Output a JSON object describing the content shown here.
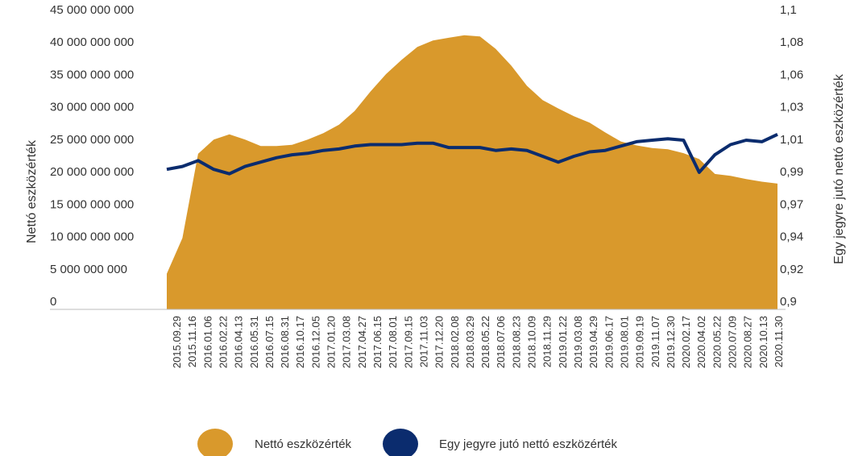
{
  "chart_data": {
    "type": "area+line",
    "title": "",
    "ylabel_left": "Nettó eszközérték",
    "ylabel_right": "Egy jegyre jutó nettó eszközérték",
    "grid": false,
    "legend_position": "bottom-center",
    "left_axis": {
      "ylim": [
        0,
        45000000000
      ],
      "tick_values": [
        0,
        5000000000,
        10000000000,
        15000000000,
        20000000000,
        25000000000,
        30000000000,
        35000000000,
        40000000000,
        45000000000
      ],
      "tick_labels": [
        "0",
        "5 000 000 000",
        "10 000 000 000",
        "15 000 000 000",
        "20 000 000 000",
        "25 000 000 000",
        "30 000 000 000",
        "35 000 000 000",
        "40 000 000 000",
        "45 000 000 000"
      ]
    },
    "right_axis": {
      "ylim": [
        0.9,
        1.1
      ],
      "tick_labels": [
        "0,9",
        "0,92",
        "0,94",
        "0,97",
        "0,99",
        "1,01",
        "1,03",
        "1,06",
        "1,08",
        "1,1"
      ]
    },
    "x_tick_labels": [
      "2015.09.29",
      "2015.11.16",
      "2016.01.06",
      "2016.02.22",
      "2016.04.13",
      "2016.05.31",
      "2016.07.15",
      "2016.08.31",
      "2016.10.17",
      "2016.12.05",
      "2017.01.20",
      "2017.03.08",
      "2017.04.27",
      "2017.06.15",
      "2017.08.01",
      "2017.09.15",
      "2017.11.03",
      "2017.12.20",
      "2018.02.08",
      "2018.03.29",
      "2018.05.22",
      "2018.07.06",
      "2018.08.23",
      "2018.10.09",
      "2018.11.29",
      "2019.01.22",
      "2019.03.08",
      "2019.04.29",
      "2019.06.17",
      "2019.08.01",
      "2019.09.19",
      "2019.11.07",
      "2019.12.30",
      "2020.02.17",
      "2020.04.02",
      "2020.05.22",
      "2020.07.09",
      "2020.08.27",
      "2020.10.13",
      "2020.11.30"
    ],
    "series": [
      {
        "name": "Nettó eszközérték",
        "kind": "area",
        "color": "#D9992C",
        "values": [
          5500000000,
          11000000000,
          24000000000,
          26200000000,
          27000000000,
          26200000000,
          25200000000,
          25200000000,
          25400000000,
          26200000000,
          27200000000,
          28500000000,
          30600000000,
          33600000000,
          36300000000,
          38500000000,
          40500000000,
          41500000000,
          41900000000,
          42300000000,
          42100000000,
          40200000000,
          37600000000,
          34500000000,
          32300000000,
          31000000000,
          29800000000,
          28800000000,
          27300000000,
          25900000000,
          25300000000,
          24900000000,
          24700000000,
          24100000000,
          23200000000,
          20900000000,
          20600000000,
          20100000000,
          19700000000,
          19400000000
        ]
      },
      {
        "name": "Egy jegyre jutó nettó eszközérték",
        "kind": "line",
        "color": "#0B2C6E",
        "values": [
          0.996,
          0.998,
          1.002,
          0.996,
          0.993,
          0.998,
          1.001,
          1.004,
          1.006,
          1.007,
          1.009,
          1.01,
          1.012,
          1.013,
          1.013,
          1.013,
          1.014,
          1.014,
          1.011,
          1.011,
          1.011,
          1.009,
          1.01,
          1.009,
          1.005,
          1.001,
          1.005,
          1.008,
          1.009,
          1.012,
          1.015,
          1.016,
          1.017,
          1.016,
          0.994,
          1.006,
          1.013,
          1.016,
          1.015,
          1.02
        ]
      }
    ]
  }
}
